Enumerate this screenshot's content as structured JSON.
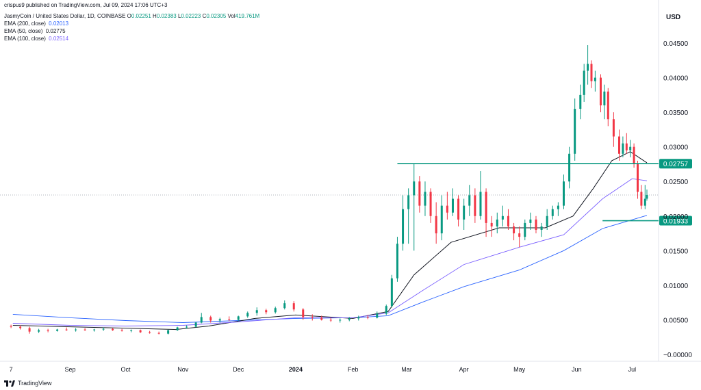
{
  "header": {
    "published": "crispus9 published on TradingView.com, Jul 09, 2024 17:06 UTC+3",
    "symbol": "JasmyCoin / United States Dollar, 1D, COINBASE",
    "ohlc": {
      "o_label": "O",
      "o": "0.02251",
      "h_label": "H",
      "h": "0.02383",
      "l_label": "L",
      "l": "0.02223",
      "c_label": "C",
      "c": "0.02305",
      "vol_label": "Vol",
      "vol": "419.761M"
    },
    "emas": [
      {
        "label": "EMA (200, close)",
        "value": "0.02013",
        "color": "#2962ff"
      },
      {
        "label": "EMA (50, close)",
        "value": "0.02775",
        "color": "#131722"
      },
      {
        "label": "EMA (100, close)",
        "value": "0.02514",
        "color": "#7b61ff"
      }
    ]
  },
  "currency": "USD",
  "footer": {
    "brand": "TradingView"
  },
  "colors": {
    "up": "#089981",
    "down": "#f23645",
    "level": "#089981"
  },
  "chart_data": {
    "type": "candlestick",
    "y_axis": {
      "ticks": [
        "0.04500",
        "0.04000",
        "0.03500",
        "0.03000",
        "0.02500",
        "0.02000",
        "0.01500",
        "0.01000",
        "0.00500",
        "−0.00000"
      ],
      "range": [
        -0.0006,
        0.0471
      ]
    },
    "x_axis": {
      "labels": [
        "7",
        "Sep",
        "Oct",
        "Nov",
        "Dec",
        "2024",
        "Feb",
        "Mar",
        "Apr",
        "May",
        "Jun",
        "Jul"
      ],
      "bold": [
        "2024"
      ]
    },
    "levels": [
      {
        "value": 0.02757,
        "label": "0.02757"
      },
      {
        "value": 0.01933,
        "label": "0.01933"
      }
    ],
    "last_price": 0.02305,
    "ema_series": [
      {
        "name": "EMA (200, close)",
        "points": [
          [
            "2023-08-01",
            0.0058
          ],
          [
            "2023-09-01",
            0.0053
          ],
          [
            "2023-10-01",
            0.0049
          ],
          [
            "2023-11-01",
            0.0046
          ],
          [
            "2023-12-01",
            0.0049
          ],
          [
            "2024-01-01",
            0.0052
          ],
          [
            "2024-02-01",
            0.0053
          ],
          [
            "2024-02-20",
            0.0056
          ],
          [
            "2024-03-10",
            0.0076
          ],
          [
            "2024-04-01",
            0.0098
          ],
          [
            "2024-05-01",
            0.0122
          ],
          [
            "2024-05-25",
            0.015
          ],
          [
            "2024-06-15",
            0.0182
          ],
          [
            "2024-07-09",
            0.0201
          ]
        ]
      },
      {
        "name": "EMA (50, close)",
        "points": [
          [
            "2023-08-01",
            0.0042
          ],
          [
            "2023-10-01",
            0.0038
          ],
          [
            "2023-10-28",
            0.0036
          ],
          [
            "2023-11-15",
            0.0041
          ],
          [
            "2023-12-10",
            0.0052
          ],
          [
            "2024-01-01",
            0.0057
          ],
          [
            "2024-02-01",
            0.0052
          ],
          [
            "2024-02-20",
            0.0062
          ],
          [
            "2024-03-05",
            0.0115
          ],
          [
            "2024-03-25",
            0.0162
          ],
          [
            "2024-04-20",
            0.0183
          ],
          [
            "2024-05-15",
            0.0183
          ],
          [
            "2024-05-30",
            0.02
          ],
          [
            "2024-06-10",
            0.024
          ],
          [
            "2024-06-20",
            0.028
          ],
          [
            "2024-06-30",
            0.0293
          ],
          [
            "2024-07-09",
            0.0277
          ]
        ]
      },
      {
        "name": "EMA (100, close)",
        "points": [
          [
            "2023-08-01",
            0.0045
          ],
          [
            "2023-09-01",
            0.0042
          ],
          [
            "2023-10-01",
            0.0041
          ],
          [
            "2023-11-01",
            0.0042
          ],
          [
            "2023-12-01",
            0.0047
          ],
          [
            "2024-01-01",
            0.0053
          ],
          [
            "2024-02-01",
            0.0053
          ],
          [
            "2024-02-20",
            0.006
          ],
          [
            "2024-03-10",
            0.0093
          ],
          [
            "2024-04-01",
            0.013
          ],
          [
            "2024-05-01",
            0.0155
          ],
          [
            "2024-05-25",
            0.0173
          ],
          [
            "2024-06-15",
            0.0225
          ],
          [
            "2024-07-01",
            0.0254
          ],
          [
            "2024-07-09",
            0.0251
          ]
        ]
      }
    ],
    "candles": [
      [
        "2023-07-31",
        0.0041,
        0.0043,
        0.0038,
        0.004
      ],
      [
        "2023-08-05",
        0.004,
        0.0042,
        0.0036,
        0.0038
      ],
      [
        "2023-08-10",
        0.0038,
        0.004,
        0.003,
        0.0033
      ],
      [
        "2023-08-15",
        0.0033,
        0.0037,
        0.0031,
        0.0035
      ],
      [
        "2023-08-20",
        0.0035,
        0.0037,
        0.0032,
        0.0034
      ],
      [
        "2023-08-25",
        0.0034,
        0.0037,
        0.0033,
        0.0036
      ],
      [
        "2023-08-30",
        0.0036,
        0.0039,
        0.0034,
        0.0035
      ],
      [
        "2023-09-04",
        0.0035,
        0.0038,
        0.0033,
        0.0036
      ],
      [
        "2023-09-09",
        0.0036,
        0.0038,
        0.0034,
        0.0035
      ],
      [
        "2023-09-14",
        0.0035,
        0.0037,
        0.0033,
        0.0036
      ],
      [
        "2023-09-19",
        0.0036,
        0.0039,
        0.0034,
        0.0037
      ],
      [
        "2023-09-24",
        0.0037,
        0.0038,
        0.0034,
        0.0035
      ],
      [
        "2023-09-29",
        0.0035,
        0.0037,
        0.0033,
        0.0034
      ],
      [
        "2023-10-04",
        0.0034,
        0.0036,
        0.0032,
        0.0035
      ],
      [
        "2023-10-09",
        0.0035,
        0.0036,
        0.0031,
        0.0032
      ],
      [
        "2023-10-14",
        0.0032,
        0.0034,
        0.003,
        0.0031
      ],
      [
        "2023-10-19",
        0.0031,
        0.0033,
        0.0029,
        0.003
      ],
      [
        "2023-10-24",
        0.003,
        0.0036,
        0.0029,
        0.0035
      ],
      [
        "2023-10-29",
        0.0035,
        0.004,
        0.0034,
        0.0039
      ],
      [
        "2023-11-03",
        0.0039,
        0.0042,
        0.0037,
        0.004
      ],
      [
        "2023-11-08",
        0.004,
        0.0047,
        0.0039,
        0.0046
      ],
      [
        "2023-11-11",
        0.0046,
        0.006,
        0.0045,
        0.0054
      ],
      [
        "2023-11-16",
        0.0054,
        0.0056,
        0.0046,
        0.0049
      ],
      [
        "2023-11-21",
        0.0049,
        0.0053,
        0.0046,
        0.0051
      ],
      [
        "2023-11-26",
        0.0051,
        0.0055,
        0.0048,
        0.005
      ],
      [
        "2023-12-01",
        0.005,
        0.0056,
        0.0048,
        0.0055
      ],
      [
        "2023-12-06",
        0.0055,
        0.0062,
        0.0053,
        0.006
      ],
      [
        "2023-12-11",
        0.006,
        0.0068,
        0.0056,
        0.0064
      ],
      [
        "2023-12-16",
        0.0064,
        0.0066,
        0.0058,
        0.0061
      ],
      [
        "2023-12-21",
        0.0061,
        0.0069,
        0.0059,
        0.0067
      ],
      [
        "2023-12-26",
        0.0067,
        0.0078,
        0.0065,
        0.0074
      ],
      [
        "2023-12-31",
        0.0074,
        0.0077,
        0.0062,
        0.0065
      ],
      [
        "2024-01-05",
        0.0065,
        0.0067,
        0.005,
        0.0054
      ],
      [
        "2024-01-10",
        0.0054,
        0.0058,
        0.0049,
        0.0053
      ],
      [
        "2024-01-15",
        0.0053,
        0.0056,
        0.0049,
        0.005
      ],
      [
        "2024-01-20",
        0.005,
        0.0053,
        0.0047,
        0.0049
      ],
      [
        "2024-01-25",
        0.0049,
        0.0052,
        0.0046,
        0.005
      ],
      [
        "2024-01-30",
        0.005,
        0.0054,
        0.0048,
        0.0052
      ],
      [
        "2024-02-04",
        0.0052,
        0.0056,
        0.0049,
        0.0054
      ],
      [
        "2024-02-09",
        0.0054,
        0.0057,
        0.0051,
        0.0053
      ],
      [
        "2024-02-14",
        0.0053,
        0.0062,
        0.0052,
        0.0059
      ],
      [
        "2024-02-19",
        0.0059,
        0.0072,
        0.0057,
        0.007
      ],
      [
        "2024-02-22",
        0.007,
        0.0115,
        0.0068,
        0.011
      ],
      [
        "2024-02-25",
        0.011,
        0.017,
        0.0105,
        0.016
      ],
      [
        "2024-02-28",
        0.016,
        0.023,
        0.015,
        0.021
      ],
      [
        "2024-03-02",
        0.021,
        0.024,
        0.016,
        0.023
      ],
      [
        "2024-03-05",
        0.023,
        0.0275,
        0.015,
        0.025
      ],
      [
        "2024-03-08",
        0.025,
        0.0258,
        0.0205,
        0.0215
      ],
      [
        "2024-03-11",
        0.0215,
        0.025,
        0.02,
        0.0235
      ],
      [
        "2024-03-14",
        0.0235,
        0.024,
        0.019,
        0.02
      ],
      [
        "2024-03-17",
        0.02,
        0.022,
        0.016,
        0.0175
      ],
      [
        "2024-03-20",
        0.0175,
        0.023,
        0.0165,
        0.0215
      ],
      [
        "2024-03-23",
        0.0215,
        0.0235,
        0.0195,
        0.0205
      ],
      [
        "2024-03-26",
        0.0205,
        0.024,
        0.02,
        0.0225
      ],
      [
        "2024-03-29",
        0.0225,
        0.023,
        0.0185,
        0.0195
      ],
      [
        "2024-04-01",
        0.0195,
        0.0225,
        0.018,
        0.0215
      ],
      [
        "2024-04-04",
        0.0215,
        0.0245,
        0.02,
        0.023
      ],
      [
        "2024-04-07",
        0.023,
        0.024,
        0.019,
        0.02
      ],
      [
        "2024-04-10",
        0.02,
        0.0265,
        0.0195,
        0.0235
      ],
      [
        "2024-04-13",
        0.0235,
        0.024,
        0.017,
        0.019
      ],
      [
        "2024-04-16",
        0.019,
        0.02,
        0.017,
        0.0185
      ],
      [
        "2024-04-19",
        0.0185,
        0.0205,
        0.0175,
        0.0195
      ],
      [
        "2024-04-22",
        0.0195,
        0.0215,
        0.0185,
        0.02
      ],
      [
        "2024-04-25",
        0.02,
        0.021,
        0.018,
        0.0185
      ],
      [
        "2024-04-28",
        0.0185,
        0.019,
        0.0165,
        0.0175
      ],
      [
        "2024-05-01",
        0.0175,
        0.0185,
        0.0155,
        0.017
      ],
      [
        "2024-05-04",
        0.017,
        0.0195,
        0.0165,
        0.019
      ],
      [
        "2024-05-07",
        0.019,
        0.0205,
        0.018,
        0.0195
      ],
      [
        "2024-05-10",
        0.0195,
        0.02,
        0.0175,
        0.018
      ],
      [
        "2024-05-13",
        0.018,
        0.019,
        0.017,
        0.0185
      ],
      [
        "2024-05-16",
        0.0185,
        0.021,
        0.018,
        0.02
      ],
      [
        "2024-05-19",
        0.02,
        0.0215,
        0.0195,
        0.021
      ],
      [
        "2024-05-22",
        0.021,
        0.022,
        0.02,
        0.0215
      ],
      [
        "2024-05-25",
        0.0215,
        0.026,
        0.021,
        0.025
      ],
      [
        "2024-05-28",
        0.025,
        0.03,
        0.024,
        0.029
      ],
      [
        "2024-05-31",
        0.029,
        0.037,
        0.028,
        0.0355
      ],
      [
        "2024-06-03",
        0.0355,
        0.039,
        0.034,
        0.0375
      ],
      [
        "2024-06-05",
        0.0375,
        0.042,
        0.0365,
        0.041
      ],
      [
        "2024-06-07",
        0.041,
        0.0447,
        0.039,
        0.042
      ],
      [
        "2024-06-09",
        0.042,
        0.0425,
        0.0385,
        0.0395
      ],
      [
        "2024-06-11",
        0.0395,
        0.041,
        0.038,
        0.04
      ],
      [
        "2024-06-14",
        0.04,
        0.0405,
        0.035,
        0.036
      ],
      [
        "2024-06-16",
        0.036,
        0.039,
        0.034,
        0.038
      ],
      [
        "2024-06-18",
        0.038,
        0.0385,
        0.033,
        0.034
      ],
      [
        "2024-06-21",
        0.034,
        0.035,
        0.03,
        0.0315
      ],
      [
        "2024-06-24",
        0.0315,
        0.0325,
        0.028,
        0.029
      ],
      [
        "2024-06-26",
        0.029,
        0.0315,
        0.0285,
        0.0305
      ],
      [
        "2024-06-28",
        0.0305,
        0.032,
        0.029,
        0.0295
      ],
      [
        "2024-06-30",
        0.0295,
        0.031,
        0.0285,
        0.03
      ],
      [
        "2024-07-02",
        0.03,
        0.0305,
        0.027,
        0.0275
      ],
      [
        "2024-07-04",
        0.0275,
        0.028,
        0.0225,
        0.0235
      ],
      [
        "2024-07-06",
        0.0235,
        0.0245,
        0.021,
        0.0215
      ],
      [
        "2024-07-08",
        0.0215,
        0.0245,
        0.021,
        0.0225
      ],
      [
        "2024-07-09",
        0.02251,
        0.02383,
        0.02223,
        0.02305
      ]
    ]
  }
}
